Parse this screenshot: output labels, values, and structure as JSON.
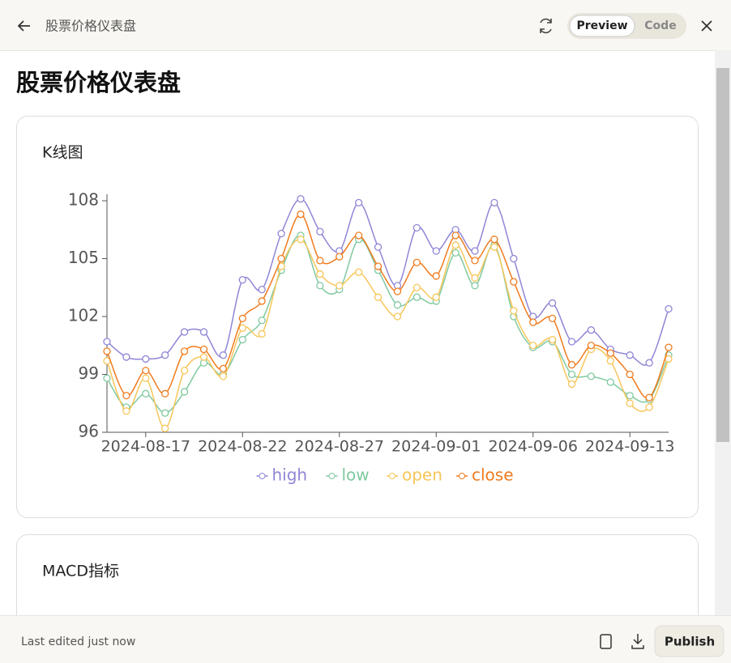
{
  "header": {
    "title": "股票价格仪表盘",
    "tabs": [
      "Preview",
      "Code"
    ]
  },
  "page_title": "股票价格仪表盘",
  "chart_data": {
    "type": "line",
    "title": "K线图",
    "categories": [
      null,
      null,
      "2024-08-17",
      null,
      null,
      null,
      null,
      "2024-08-22",
      null,
      null,
      null,
      null,
      "2024-08-27",
      null,
      null,
      null,
      null,
      "2024-09-01",
      null,
      null,
      null,
      null,
      "2024-09-06",
      null,
      null,
      null,
      null,
      "2024-09-13",
      null,
      null
    ],
    "series": [
      {
        "name": "high",
        "color": "#8f86d6",
        "values": [
          100.7,
          99.9,
          99.8,
          100.0,
          101.2,
          101.2,
          100.0,
          103.9,
          103.4,
          106.3,
          108.1,
          106.4,
          105.4,
          107.9,
          105.6,
          103.6,
          106.6,
          105.4,
          106.5,
          105.4,
          107.9,
          105.0,
          102.0,
          102.7,
          100.7,
          101.3,
          100.3,
          100.0,
          99.6,
          102.4
        ]
      },
      {
        "name": "low",
        "color": "#80c9a0",
        "values": [
          98.8,
          97.3,
          98.0,
          97.0,
          98.1,
          99.6,
          99.0,
          100.8,
          101.8,
          104.4,
          106.2,
          103.6,
          103.4,
          106.0,
          104.4,
          102.6,
          103.0,
          102.8,
          105.3,
          103.6,
          105.7,
          102.0,
          100.4,
          100.7,
          99.0,
          98.9,
          98.6,
          97.9,
          97.7,
          100.0
        ]
      },
      {
        "name": "open",
        "color": "#f6c65a",
        "values": [
          99.7,
          97.1,
          98.8,
          96.2,
          99.2,
          99.9,
          98.9,
          101.4,
          101.1,
          104.6,
          106.0,
          104.2,
          103.6,
          104.3,
          103.0,
          102.0,
          103.5,
          103.0,
          105.7,
          104.0,
          105.6,
          102.3,
          100.5,
          100.8,
          98.5,
          100.3,
          99.7,
          97.5,
          97.3,
          99.8
        ]
      },
      {
        "name": "close",
        "color": "#f07b1e",
        "values": [
          100.2,
          97.9,
          99.2,
          98.0,
          100.2,
          100.3,
          99.3,
          101.9,
          102.8,
          105.0,
          107.3,
          104.9,
          105.1,
          106.2,
          104.6,
          103.3,
          104.8,
          104.1,
          106.2,
          104.9,
          106.0,
          103.8,
          101.7,
          101.9,
          99.5,
          100.5,
          100.1,
          99.0,
          97.8,
          100.4
        ]
      }
    ],
    "ylim": [
      96,
      108
    ],
    "yticks": [
      96,
      99,
      102,
      105,
      108
    ],
    "legend": "bottom"
  },
  "second_card": {
    "title": "MACD指标"
  },
  "footer": {
    "status": "Last edited just now",
    "publish": "Publish"
  }
}
